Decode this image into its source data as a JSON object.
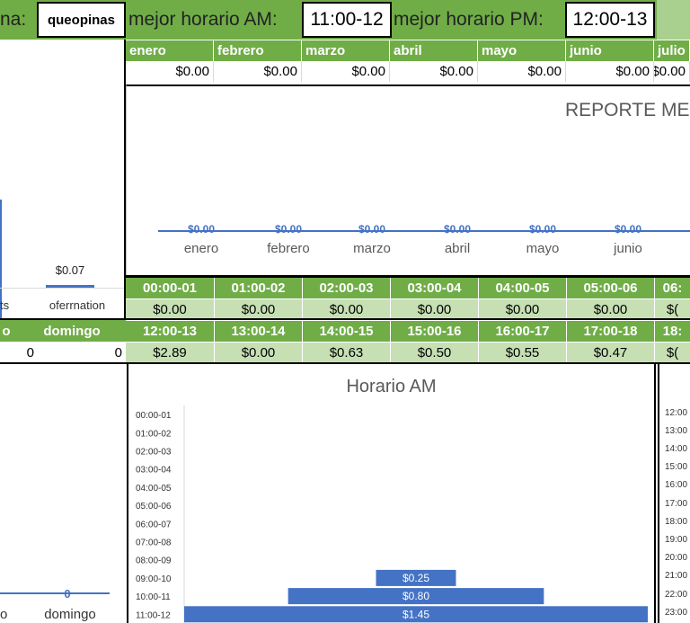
{
  "top_bar": {
    "cut_label": "na:",
    "name_value": "queopinas",
    "am_label": "mejor horario AM:",
    "am_value": "11:00-12",
    "pm_label": "mejor horario PM:",
    "pm_value": "12:00-13"
  },
  "months": {
    "headers": [
      "enero",
      "febrero",
      "marzo",
      "abril",
      "mayo",
      "junio",
      "julio"
    ],
    "values": [
      "$0.00",
      "$0.00",
      "$0.00",
      "$0.00",
      "$0.00",
      "$0.00",
      "$0.00"
    ]
  },
  "monthly_chart": {
    "title": "REPORTE MEN",
    "categories": [
      "enero",
      "febrero",
      "marzo",
      "abril",
      "mayo",
      "junio"
    ],
    "labels": [
      "$0.00",
      "$0.00",
      "$0.00",
      "$0.00",
      "$0.00",
      "$0.00"
    ]
  },
  "left_chart": {
    "value_label": "$0.07",
    "cat_labels": [
      "ts",
      "oferrnation"
    ]
  },
  "hours_am": {
    "headers": [
      "00:00-01",
      "01:00-02",
      "02:00-03",
      "03:00-04",
      "04:00-05",
      "05:00-06",
      "06:"
    ],
    "values": [
      "$0.00",
      "$0.00",
      "$0.00",
      "$0.00",
      "$0.00",
      "$0.00",
      "$("
    ]
  },
  "hours_pm": {
    "headers": [
      "12:00-13",
      "13:00-14",
      "14:00-15",
      "15:00-16",
      "16:00-17",
      "17:00-18",
      "18:"
    ],
    "values": [
      "$2.89",
      "$0.00",
      "$0.63",
      "$0.50",
      "$0.55",
      "$0.47",
      "$("
    ]
  },
  "week": {
    "left_header": "o",
    "sunday_header": "domingo",
    "left_value": "0",
    "sunday_value": "0"
  },
  "bottom_left_chart": {
    "value_label": "0",
    "cat_labels": [
      "o",
      "domingo"
    ]
  },
  "chart_data": {
    "type": "bar",
    "title": "Horario AM",
    "categories": [
      "00:00-01",
      "01:00-02",
      "02:00-03",
      "03:00-04",
      "04:00-05",
      "05:00-06",
      "06:00-07",
      "07:00-08",
      "08:00-09",
      "09:00-10",
      "10:00-11",
      "11:00-12"
    ],
    "values": [
      0,
      0,
      0,
      0,
      0,
      0,
      0,
      0,
      0,
      0.25,
      0.8,
      1.45
    ],
    "data_labels": [
      "",
      "",
      "",
      "",
      "",
      "",
      "",
      "",
      "",
      "$0.25",
      "$0.80",
      "$1.45"
    ],
    "orientation": "horizontal",
    "xlim": [
      0,
      1.45
    ],
    "color": "#4472c4"
  },
  "pm_chart": {
    "categories": [
      "12:00",
      "13:00",
      "14:00",
      "15:00",
      "16:00",
      "17:00",
      "18:00",
      "19:00",
      "20:00",
      "21:00",
      "22:00",
      "23:00"
    ]
  },
  "colors": {
    "header_green": "#70ad47",
    "value_green": "#c6e0b4",
    "bar_blue": "#4472c4"
  }
}
